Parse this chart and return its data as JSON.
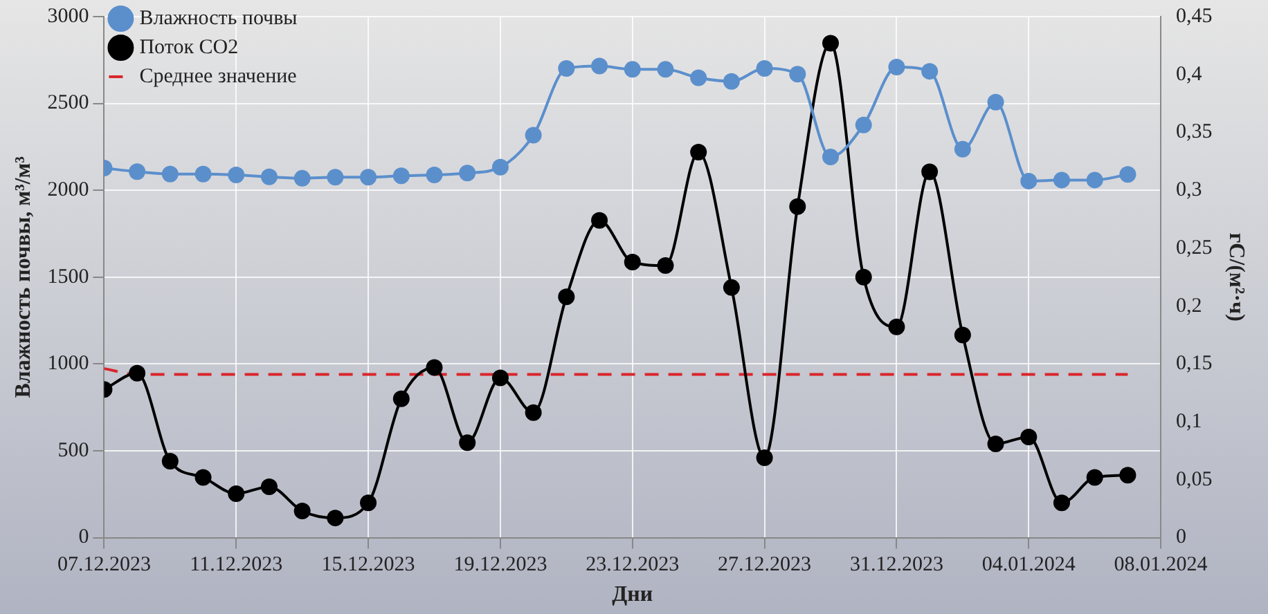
{
  "chart_data": {
    "type": "line",
    "xlabel": "Дни",
    "ylabel": "Влажность почвы, м³/м³",
    "y2label": "гС/(м²·ч)",
    "x": [
      "2023-12-07",
      "2023-12-08",
      "2023-12-09",
      "2023-12-10",
      "2023-12-11",
      "2023-12-12",
      "2023-12-13",
      "2023-12-14",
      "2023-12-15",
      "2023-12-16",
      "2023-12-17",
      "2023-12-18",
      "2023-12-19",
      "2023-12-20",
      "2023-12-21",
      "2023-12-22",
      "2023-12-23",
      "2023-12-24",
      "2023-12-25",
      "2023-12-26",
      "2023-12-27",
      "2023-12-28",
      "2023-12-29",
      "2023-12-30",
      "2023-12-31",
      "2024-01-01",
      "2024-01-02",
      "2024-01-03",
      "2024-01-04",
      "2024-01-05",
      "2024-01-06",
      "2024-01-07"
    ],
    "series": [
      {
        "name": "Влажность почвы",
        "color": "#5b8fcc",
        "marker": "circle",
        "values": [
          2128,
          2107,
          2093,
          2093,
          2088,
          2077,
          2069,
          2075,
          2075,
          2083,
          2088,
          2099,
          2133,
          2317,
          2701,
          2715,
          2696,
          2696,
          2648,
          2627,
          2701,
          2669,
          2192,
          2376,
          2709,
          2685,
          2237,
          2507,
          2053,
          2059,
          2059,
          2091
        ]
      },
      {
        "name": "Поток CO2",
        "color": "#000000",
        "marker": "circle",
        "axis": "y2",
        "values": [
          0.128,
          0.142,
          0.066,
          0.052,
          0.038,
          0.044,
          0.023,
          0.017,
          0.03,
          0.12,
          0.147,
          0.082,
          0.138,
          0.108,
          0.208,
          0.274,
          0.238,
          0.235,
          0.333,
          0.216,
          0.069,
          0.286,
          0.427,
          0.225,
          0.182,
          0.316,
          0.175,
          0.081,
          0.087,
          0.03,
          0.052,
          0.054
        ]
      },
      {
        "name": "Среднее значение",
        "color": "#d9262b",
        "marker": "none",
        "line_style": "dashed",
        "axis": "y2",
        "x": [
          "2023-12-07",
          "2023-12-08",
          "2024-01-07"
        ],
        "values": [
          0.146,
          0.141,
          0.141
        ]
      }
    ],
    "xlim": [
      "2023-12-07",
      "2024-01-08"
    ],
    "xticks": [
      {
        "value": "2023-12-07",
        "label": "07.12.2023"
      },
      {
        "value": "2023-12-11",
        "label": "11.12.2023"
      },
      {
        "value": "2023-12-15",
        "label": "15.12.2023"
      },
      {
        "value": "2023-12-19",
        "label": "19.12.2023"
      },
      {
        "value": "2023-12-23",
        "label": "23.12.2023"
      },
      {
        "value": "2023-12-27",
        "label": "27.12.2023"
      },
      {
        "value": "2023-12-31",
        "label": "31.12.2023"
      },
      {
        "value": "2024-01-04",
        "label": "04.01.2024"
      },
      {
        "value": "2024-01-08",
        "label": "08.01.2024"
      }
    ],
    "ylim": [
      0,
      3000
    ],
    "yticks": [
      0,
      500,
      1000,
      1500,
      2000,
      2500,
      3000
    ],
    "y2lim": [
      0,
      0.45
    ],
    "y2ticks": [
      0,
      {
        "value": 0.05,
        "label": "0,05"
      },
      {
        "value": 0.1,
        "label": "0,1"
      },
      {
        "value": 0.15,
        "label": "0,15"
      },
      {
        "value": 0.2,
        "label": "0,2"
      },
      {
        "value": 0.25,
        "label": "0,25"
      },
      {
        "value": 0.3,
        "label": "0,3"
      },
      {
        "value": 0.35,
        "label": "0,35"
      },
      {
        "value": 0.4,
        "label": "0,4"
      },
      {
        "value": 0.45,
        "label": "0,45"
      }
    ],
    "grid": true,
    "legend": "top left"
  }
}
